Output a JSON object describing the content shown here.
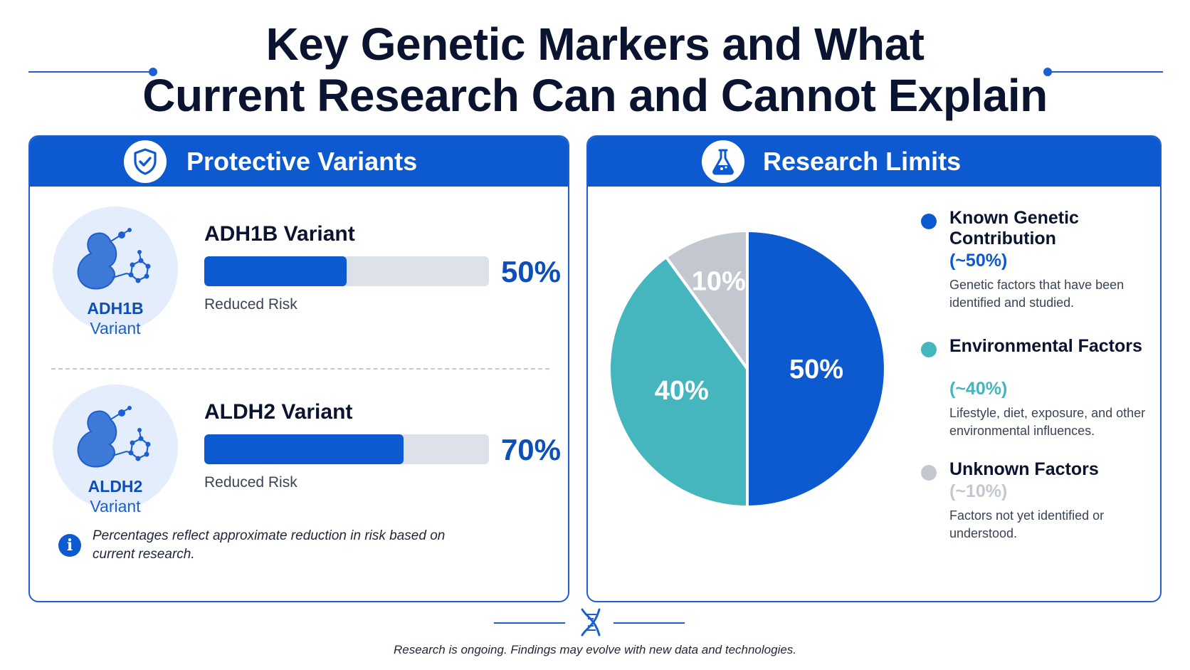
{
  "title": {
    "line1": "Key Genetic Markers and What",
    "line2": "Current Research Can and Cannot Explain"
  },
  "protective_panel": {
    "title": "Protective Variants",
    "icon": "shield-check-icon",
    "variants": [
      {
        "icon_name": "ADH1B",
        "icon_sub": "Variant",
        "title": "ADH1B Variant",
        "percent_label": "50%",
        "value": 50,
        "caption": "Reduced Risk"
      },
      {
        "icon_name": "ALDH2",
        "icon_sub": "Variant",
        "title": "ALDH2 Variant",
        "percent_label": "70%",
        "value": 70,
        "caption": "Reduced Risk"
      }
    ],
    "note": "Percentages reflect approximate reduction in risk based on current research."
  },
  "limits_panel": {
    "title": "Research Limits",
    "icon": "flask-icon",
    "legend": [
      {
        "name": "Known Genetic Contribution",
        "pct": "(~50%)",
        "desc": "Genetic factors that have been identified and studied.",
        "color": "#0d5ad0"
      },
      {
        "name": "Environmental Factors",
        "pct": "(~40%)",
        "desc": "Lifestyle, diet, exposure, and other environmental influences.",
        "color": "#45b5be"
      },
      {
        "name": "Unknown Factors",
        "pct": "(~10%)",
        "desc": "Factors not yet identified or understood.",
        "color": "#c3c7cf"
      }
    ]
  },
  "chart_data": [
    {
      "type": "bar",
      "categories": [
        "ADH1B Variant",
        "ALDH2 Variant"
      ],
      "values": [
        50,
        70
      ],
      "data_labels": [
        "50%",
        "70%"
      ],
      "xlim": [
        0,
        100
      ],
      "colors": {
        "fill": "#0d5ad0",
        "track": "#dde2ea"
      }
    },
    {
      "type": "pie",
      "labels": [
        "Known Genetic Contribution",
        "Environmental Factors",
        "Unknown Factors"
      ],
      "values": [
        50,
        40,
        10
      ],
      "data_labels": [
        "50%",
        "40%",
        "10%"
      ],
      "colors": [
        "#0d5ad0",
        "#45b5be",
        "#c3c7cf"
      ],
      "legend": "right"
    }
  ],
  "footer": {
    "icon": "dna-icon",
    "text": "Research is ongoing. Findings may evolve with new data and technologies."
  }
}
